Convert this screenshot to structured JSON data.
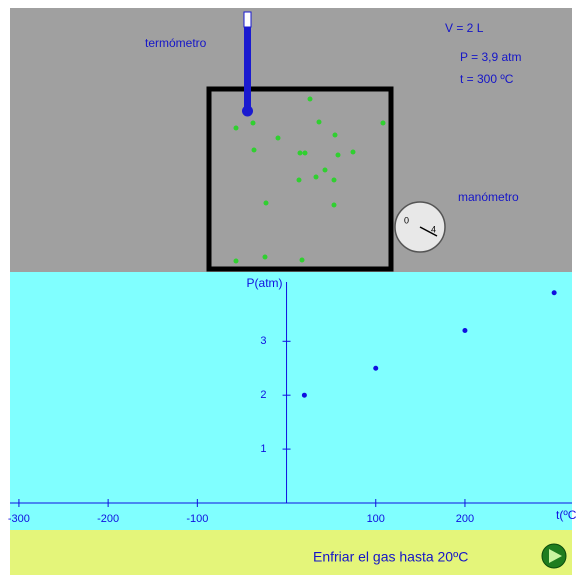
{
  "labels": {
    "volume": "V = 2 L",
    "pressure": "P = 3,9 atm",
    "temperature": "t = 300 ºC",
    "thermometer": "termómetro",
    "manometer": "manómetro",
    "gauge_min": "0",
    "gauge_max": "4"
  },
  "graph": {
    "type": "scatter",
    "y_label": "P(atm)",
    "x_label": "t(ºC",
    "xlim": [
      -310,
      320
    ],
    "ylim": [
      0,
      4.1
    ],
    "xticks": [
      -300,
      -200,
      -100,
      100,
      200
    ],
    "yticks": [
      1,
      2,
      3
    ],
    "color": "#1010e0",
    "x": [
      20,
      100,
      200,
      300
    ],
    "values": [
      2.0,
      2.5,
      3.2,
      3.9
    ]
  },
  "button": {
    "text": "Enfriar el gas hasta  20ºC"
  }
}
